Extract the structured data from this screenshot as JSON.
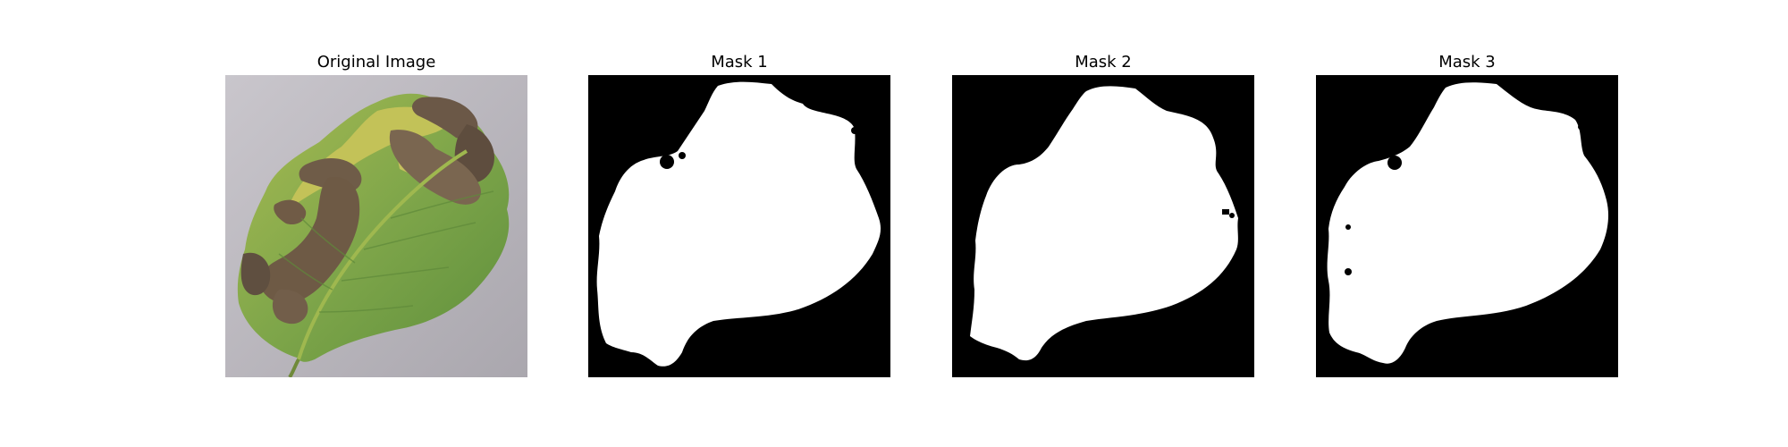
{
  "figure": {
    "panels": [
      {
        "title": "Original Image",
        "kind": "photo"
      },
      {
        "title": "Mask 1",
        "kind": "mask"
      },
      {
        "title": "Mask 2",
        "kind": "mask"
      },
      {
        "title": "Mask 3",
        "kind": "mask"
      }
    ]
  },
  "colors": {
    "background": "#bfbcc3",
    "leaf_green": "#7fa64a",
    "leaf_yellow": "#c8c65a",
    "blight_brown": "#6e5a45",
    "mask_background": "#000000",
    "mask_foreground": "#ffffff"
  }
}
